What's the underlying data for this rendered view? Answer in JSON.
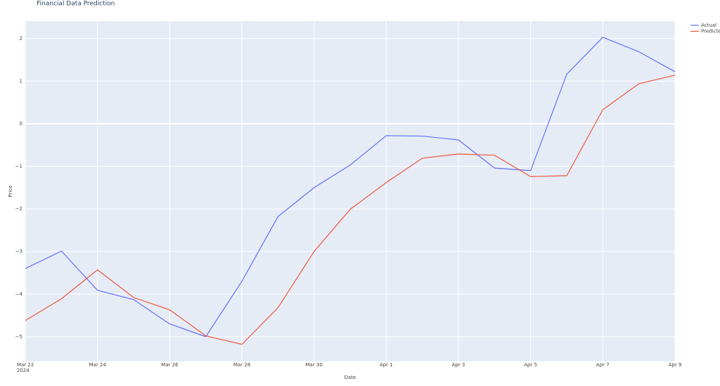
{
  "chart_data": {
    "type": "line",
    "title": "Financial Data Prediction",
    "x_label": "Date",
    "y_label": "Price",
    "x": [
      "2024-03-22",
      "2024-03-23",
      "2024-03-24",
      "2024-03-25",
      "2024-03-26",
      "2024-03-27",
      "2024-03-28",
      "2024-03-29",
      "2024-03-30",
      "2024-03-31",
      "2024-04-01",
      "2024-04-02",
      "2024-04-03",
      "2024-04-04",
      "2024-04-05",
      "2024-04-06",
      "2024-04-07",
      "2024-04-08",
      "2024-04-09"
    ],
    "series": [
      {
        "name": "Actual",
        "color": "#636efa",
        "values": [
          -3.4,
          -2.99,
          -3.91,
          -4.13,
          -4.7,
          -5.0,
          -3.7,
          -2.18,
          -1.5,
          -0.97,
          -0.28,
          -0.29,
          -0.38,
          -1.04,
          -1.1,
          1.16,
          2.03,
          1.69,
          1.22
        ]
      },
      {
        "name": "Predicted",
        "color": "#EF553B",
        "values": [
          -4.62,
          -4.11,
          -3.43,
          -4.08,
          -4.37,
          -4.98,
          -5.18,
          -4.32,
          -3.0,
          -2.01,
          -1.38,
          -0.81,
          -0.71,
          -0.74,
          -1.24,
          -1.22,
          0.33,
          0.94,
          1.14
        ]
      }
    ],
    "xlim": [
      "2024-03-22",
      "2024-04-09"
    ],
    "xticks": [
      {
        "value": "2024-03-22",
        "label": "Mar 22\n2024"
      },
      {
        "value": "2024-03-24",
        "label": "Mar 24"
      },
      {
        "value": "2024-03-26",
        "label": "Mar 26"
      },
      {
        "value": "2024-03-28",
        "label": "Mar 28"
      },
      {
        "value": "2024-03-30",
        "label": "Mar 30"
      },
      {
        "value": "2024-04-01",
        "label": "Apr 1"
      },
      {
        "value": "2024-04-03",
        "label": "Apr 3"
      },
      {
        "value": "2024-04-05",
        "label": "Apr 5"
      },
      {
        "value": "2024-04-07",
        "label": "Apr 7"
      },
      {
        "value": "2024-04-09",
        "label": "Apr 9"
      }
    ],
    "ylim": [
      -5.58,
      2.41
    ],
    "yticks": [
      {
        "value": -5,
        "label": "−5"
      },
      {
        "value": -4,
        "label": "−4"
      },
      {
        "value": -3,
        "label": "−3"
      },
      {
        "value": -2,
        "label": "−2"
      },
      {
        "value": -1,
        "label": "−1"
      },
      0,
      1,
      2
    ],
    "grid": true,
    "legend": "top-right",
    "background": "#e5ecf6"
  }
}
